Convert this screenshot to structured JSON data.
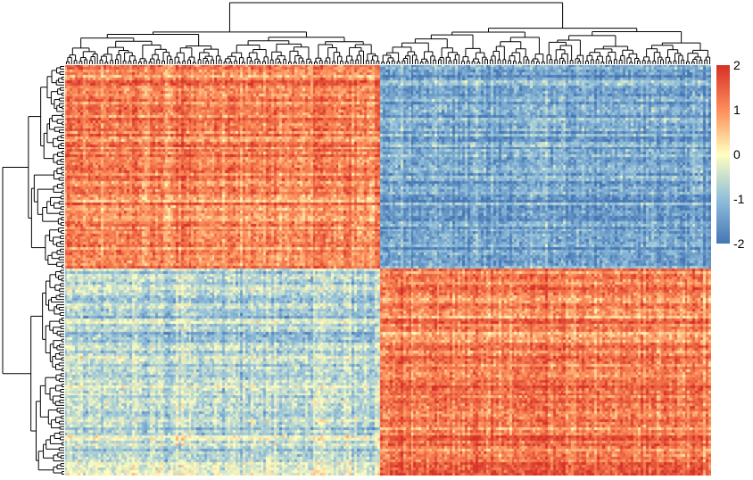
{
  "chart_data": {
    "type": "heatmap",
    "title": "",
    "xlabel": "",
    "ylabel": "",
    "n_cols": 250,
    "n_rows": 155,
    "col_clusters": [
      {
        "name": "left",
        "n": 122
      },
      {
        "name": "right",
        "n": 128
      }
    ],
    "row_clusters": [
      {
        "name": "top",
        "n": 77
      },
      {
        "name": "bottom",
        "n": 78
      }
    ],
    "block_means": [
      [
        1.1,
        -1.3
      ],
      [
        -0.6,
        1.2
      ]
    ],
    "dendrograms": {
      "rows": true,
      "columns": true
    },
    "legend": {
      "position": "right",
      "ticks": [
        "2",
        "1",
        "0",
        "-1",
        "-2"
      ],
      "range": [
        -2,
        2
      ],
      "colors": [
        "#4575b4",
        "#91bfdb",
        "#ffffbf",
        "#fc8d59",
        "#d73027"
      ]
    }
  }
}
